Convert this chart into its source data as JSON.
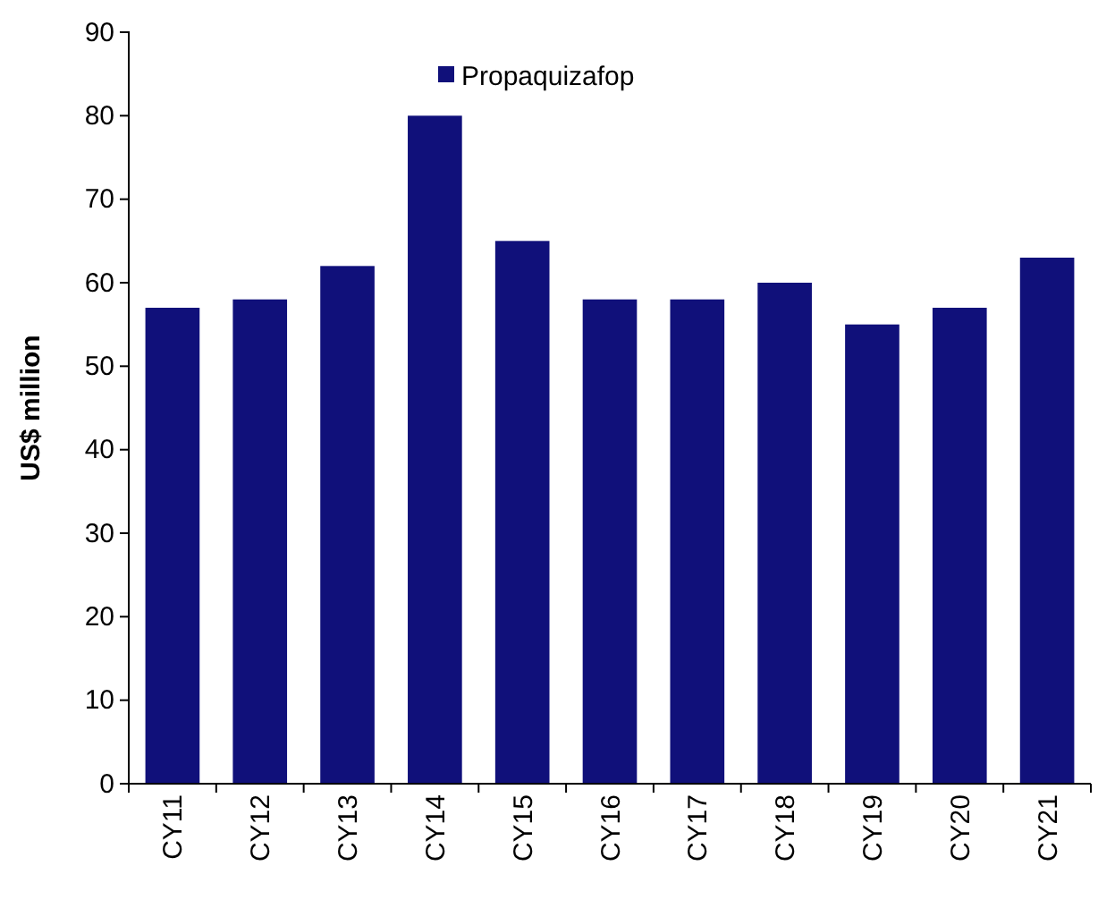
{
  "chart_data": {
    "type": "bar",
    "ylabel": "US$ million",
    "categories": [
      "CY11",
      "CY12",
      "CY13",
      "CY14",
      "CY15",
      "CY16",
      "CY17",
      "CY18",
      "CY19",
      "CY20",
      "CY21"
    ],
    "series": [
      {
        "name": "Propaquizafop",
        "color": "#10107a",
        "values": [
          57,
          58,
          62,
          80,
          65,
          58,
          58,
          60,
          55,
          57,
          63
        ]
      }
    ],
    "ylim": [
      0,
      90
    ],
    "yticks": [
      0,
      10,
      20,
      30,
      40,
      50,
      60,
      70,
      80,
      90
    ],
    "grid": false,
    "legend": "top"
  }
}
